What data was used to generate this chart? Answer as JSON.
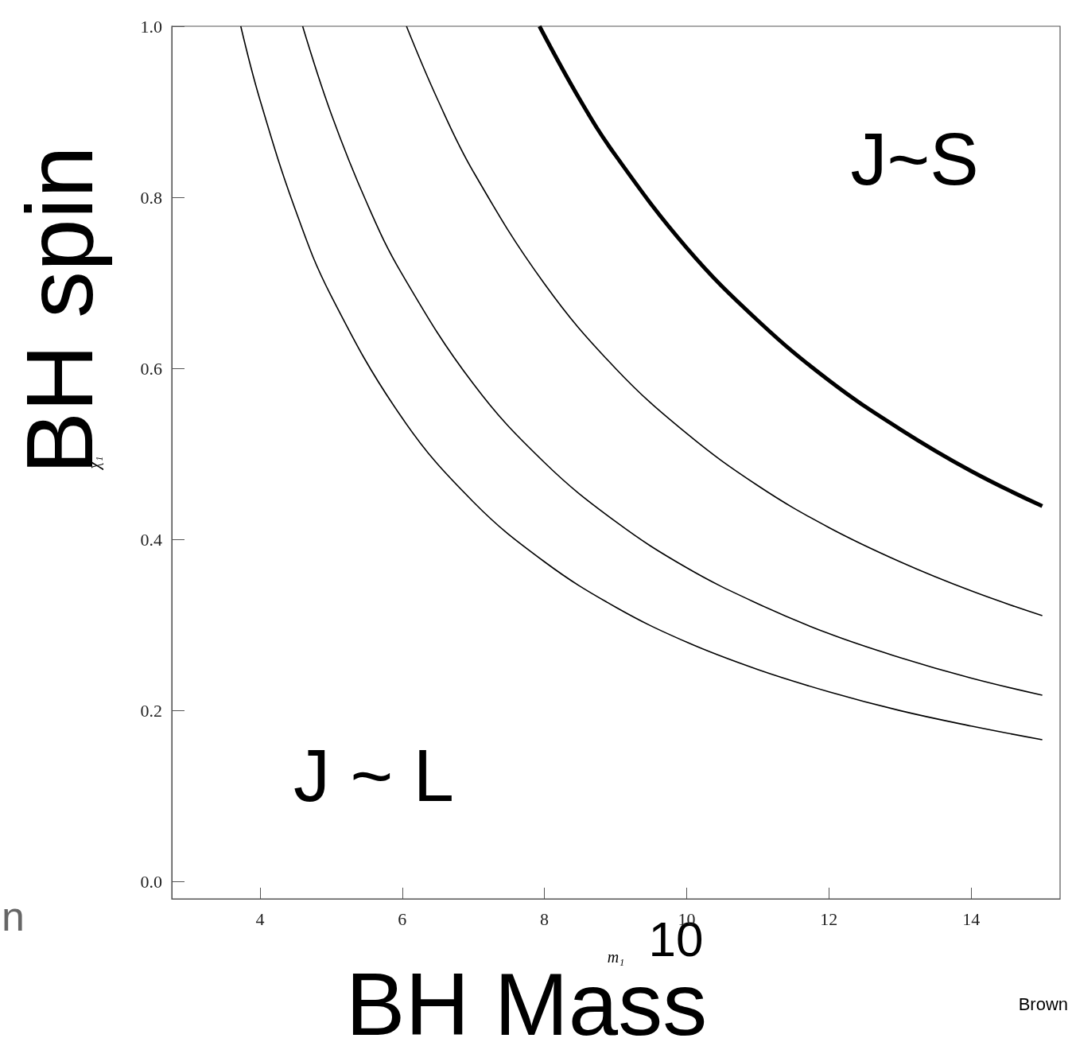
{
  "chart_data": {
    "type": "line",
    "xlabel": "m₁",
    "ylabel": "χ₁",
    "xlim": [
      2.76,
      15.25
    ],
    "xticks": [
      4,
      6,
      8,
      10,
      12,
      14
    ],
    "ylim": [
      -0.02,
      1.0
    ],
    "yticks": [
      {
        "value": 0,
        "label": "0.0"
      },
      {
        "value": 0.2,
        "label": "0.2"
      },
      {
        "value": 0.4,
        "label": "0.4"
      },
      {
        "value": 0.6,
        "label": "0.6"
      },
      {
        "value": 0.8,
        "label": "0.8"
      },
      {
        "value": 1,
        "label": "1.0"
      }
    ],
    "grid": false,
    "marker": "none",
    "line_style": "solid",
    "series": [
      {
        "color": "#000000",
        "x": [
          3.73,
          4,
          4.5,
          5,
          6,
          7,
          8,
          9,
          10,
          11,
          12,
          13,
          14,
          15
        ],
        "values": [
          1.0,
          0.914,
          0.785,
          0.685,
          0.542,
          0.444,
          0.374,
          0.321,
          0.28,
          0.248,
          0.222,
          0.2,
          0.182,
          0.166
        ]
      },
      {
        "color": "#000000",
        "x": [
          4.6,
          5,
          5.5,
          6,
          7,
          8,
          9,
          10,
          11,
          12,
          13,
          14,
          15
        ],
        "values": [
          1.0,
          0.898,
          0.794,
          0.71,
          0.582,
          0.49,
          0.421,
          0.367,
          0.325,
          0.29,
          0.262,
          0.238,
          0.218
        ]
      },
      {
        "color": "#000000",
        "x": [
          6.06,
          6.5,
          7,
          8,
          9,
          10,
          11,
          12,
          13,
          14,
          15
        ],
        "values": [
          1.0,
          0.914,
          0.83,
          0.699,
          0.6,
          0.524,
          0.463,
          0.414,
          0.374,
          0.34,
          0.311
        ]
      },
      {
        "color": "#000000",
        "x": [
          7.93,
          8.5,
          9,
          10,
          11,
          12,
          13,
          14,
          15
        ],
        "values": [
          1.0,
          0.914,
          0.849,
          0.741,
          0.656,
          0.586,
          0.529,
          0.48,
          0.439
        ]
      }
    ],
    "annotations": [
      "J~S",
      "J ~ L",
      "BH spin",
      "BH Mass",
      "10",
      "Brown",
      "n"
    ]
  }
}
